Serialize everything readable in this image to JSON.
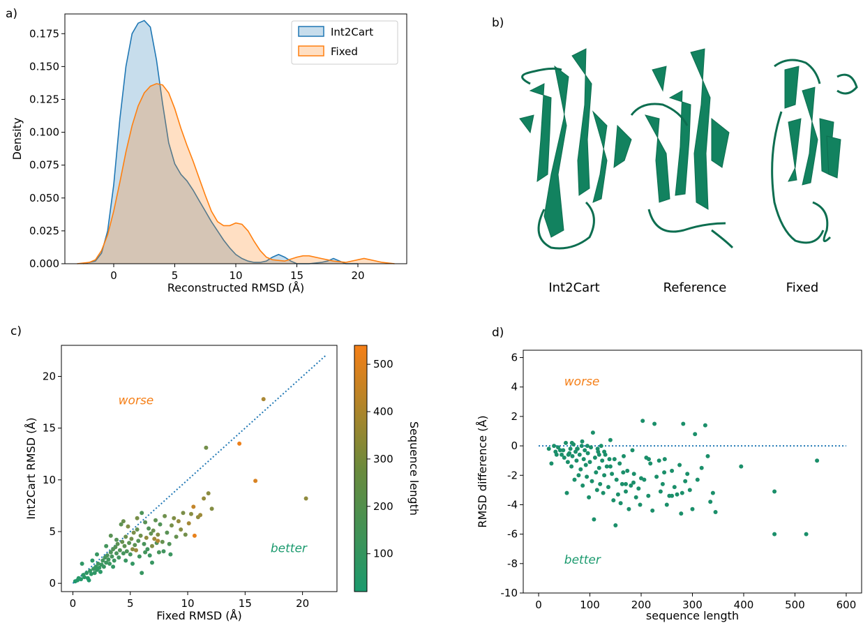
{
  "panels": {
    "a": "a)",
    "b": "b)",
    "c": "c)",
    "d": "d)"
  },
  "colors": {
    "int2cart": "#1f77b4",
    "fixed": "#ff7f0e",
    "green": "#1b8f6a",
    "cmap_low": "#1b9a6e",
    "cmap_high": "#f57f17"
  },
  "panel_b": {
    "captions": [
      "Int2Cart",
      "Reference",
      "Fixed"
    ]
  },
  "chart_data": [
    {
      "id": "a",
      "type": "area",
      "xlabel": "Reconstructed RMSD (Å)",
      "ylabel": "Density",
      "xlim": [
        -4,
        24
      ],
      "ylim": [
        0,
        0.19
      ],
      "xticks": [
        0,
        5,
        10,
        15,
        20
      ],
      "yticks": [
        0.0,
        0.025,
        0.05,
        0.075,
        0.1,
        0.125,
        0.15,
        0.175
      ],
      "ytick_labels": [
        "0.000",
        "0.025",
        "0.050",
        "0.075",
        "0.100",
        "0.125",
        "0.150",
        "0.175"
      ],
      "legend_position": "top-right",
      "series": [
        {
          "name": "Int2Cart",
          "x": [
            -2.5,
            -1.5,
            -1,
            -0.5,
            0,
            0.5,
            1,
            1.5,
            2,
            2.5,
            3,
            3.5,
            4,
            4.5,
            5,
            5.5,
            6,
            6.5,
            7,
            7.5,
            8,
            8.5,
            9,
            9.5,
            10,
            10.5,
            11,
            11.5,
            12,
            12.5,
            13,
            13.5,
            14,
            14.5,
            15,
            16,
            17,
            17.5,
            18,
            18.5,
            19,
            20
          ],
          "y": [
            0,
            0.002,
            0.008,
            0.025,
            0.06,
            0.11,
            0.15,
            0.175,
            0.183,
            0.185,
            0.18,
            0.155,
            0.122,
            0.092,
            0.076,
            0.068,
            0.063,
            0.056,
            0.048,
            0.04,
            0.032,
            0.025,
            0.018,
            0.012,
            0.007,
            0.004,
            0.002,
            0.001,
            0.001,
            0.002,
            0.005,
            0.007,
            0.005,
            0.002,
            0.0,
            0.0,
            0.001,
            0.002,
            0.004,
            0.002,
            0.0,
            0.0
          ]
        },
        {
          "name": "Fixed",
          "x": [
            -3,
            -2,
            -1.5,
            -1,
            -0.5,
            0,
            0.5,
            1,
            1.5,
            2,
            2.5,
            3,
            3.5,
            4,
            4.5,
            5,
            5.5,
            6,
            6.5,
            7,
            7.5,
            8,
            8.5,
            9,
            9.5,
            10,
            10.5,
            11,
            11.5,
            12,
            12.5,
            13,
            14,
            15,
            15.5,
            16,
            17,
            18,
            19,
            20,
            20.5,
            21,
            22,
            23
          ],
          "y": [
            0,
            0.001,
            0.003,
            0.01,
            0.022,
            0.04,
            0.062,
            0.085,
            0.105,
            0.12,
            0.13,
            0.135,
            0.137,
            0.136,
            0.13,
            0.118,
            0.103,
            0.09,
            0.078,
            0.065,
            0.052,
            0.04,
            0.032,
            0.029,
            0.029,
            0.031,
            0.03,
            0.025,
            0.017,
            0.01,
            0.005,
            0.003,
            0.002,
            0.005,
            0.006,
            0.006,
            0.004,
            0.002,
            0.001,
            0.003,
            0.004,
            0.003,
            0.001,
            0.0
          ]
        }
      ]
    },
    {
      "id": "c",
      "type": "scatter",
      "xlabel": "Fixed RMSD (Å)",
      "ylabel": "Int2Cart RMSD (Å)",
      "xlim": [
        -1,
        23
      ],
      "ylim": [
        -0.8,
        23
      ],
      "xticks": [
        0,
        5,
        10,
        15,
        20
      ],
      "yticks": [
        0,
        5,
        10,
        15,
        20
      ],
      "reference_line": {
        "x": [
          0,
          22
        ],
        "y": [
          0,
          22
        ]
      },
      "annotations": [
        {
          "text": "worse",
          "x": 5.5,
          "y": 17.3,
          "color": "#f57f17"
        },
        {
          "text": "better",
          "x": 18.8,
          "y": 3.0,
          "color": "#1b9a6e"
        }
      ],
      "colorbar": {
        "label": "Sequence length",
        "range": [
          20,
          540
        ],
        "ticks": [
          100,
          200,
          300,
          400,
          500
        ]
      },
      "points": [
        [
          0.2,
          0.2,
          30
        ],
        [
          0.4,
          0.3,
          40
        ],
        [
          0.5,
          0.5,
          50
        ],
        [
          0.7,
          0.4,
          45
        ],
        [
          0.9,
          0.8,
          60
        ],
        [
          1.0,
          0.6,
          55
        ],
        [
          1.2,
          1.0,
          70
        ],
        [
          1.3,
          0.5,
          50
        ],
        [
          1.5,
          1.2,
          80
        ],
        [
          1.6,
          0.9,
          65
        ],
        [
          1.8,
          1.4,
          90
        ],
        [
          1.9,
          1.0,
          70
        ],
        [
          2.0,
          1.6,
          85
        ],
        [
          2.1,
          1.3,
          75
        ],
        [
          2.2,
          1.9,
          100
        ],
        [
          2.3,
          1.5,
          80
        ],
        [
          2.5,
          1.8,
          95
        ],
        [
          2.6,
          2.2,
          110
        ],
        [
          2.7,
          1.6,
          90
        ],
        [
          2.8,
          2.5,
          120
        ],
        [
          2.9,
          2.0,
          100
        ],
        [
          3.0,
          2.7,
          130
        ],
        [
          3.1,
          2.3,
          110
        ],
        [
          3.2,
          1.9,
          95
        ],
        [
          3.3,
          3.0,
          140
        ],
        [
          3.4,
          2.6,
          120
        ],
        [
          3.5,
          3.3,
          150
        ],
        [
          3.6,
          2.2,
          100
        ],
        [
          3.7,
          3.5,
          160
        ],
        [
          3.8,
          2.9,
          130
        ],
        [
          3.9,
          3.8,
          170
        ],
        [
          4.0,
          2.5,
          110
        ],
        [
          4.1,
          3.2,
          150
        ],
        [
          4.2,
          5.7,
          180
        ],
        [
          4.3,
          4.0,
          200
        ],
        [
          4.4,
          2.9,
          120
        ],
        [
          4.5,
          3.6,
          180
        ],
        [
          4.6,
          4.5,
          210
        ],
        [
          4.7,
          3.1,
          140
        ],
        [
          4.8,
          5.5,
          260
        ],
        [
          4.9,
          3.9,
          170
        ],
        [
          5.0,
          2.8,
          120
        ],
        [
          5.1,
          4.3,
          230
        ],
        [
          5.2,
          3.3,
          290
        ],
        [
          5.3,
          4.9,
          250
        ],
        [
          5.4,
          3.7,
          180
        ],
        [
          5.5,
          3.2,
          330
        ],
        [
          5.6,
          5.2,
          200
        ],
        [
          5.7,
          4.1,
          160
        ],
        [
          5.8,
          2.6,
          110
        ],
        [
          5.9,
          4.6,
          220
        ],
        [
          6.0,
          6.8,
          140
        ],
        [
          6.0,
          1.0,
          90
        ],
        [
          6.2,
          3.8,
          130
        ],
        [
          6.3,
          5.9,
          170
        ],
        [
          6.4,
          4.4,
          300
        ],
        [
          6.5,
          3.3,
          110
        ],
        [
          6.6,
          5.3,
          150
        ],
        [
          6.7,
          2.7,
          100
        ],
        [
          6.8,
          4.8,
          190
        ],
        [
          6.9,
          3.6,
          260
        ],
        [
          7.0,
          5.1,
          210
        ],
        [
          7.1,
          4.3,
          340
        ],
        [
          7.2,
          6.1,
          180
        ],
        [
          7.3,
          3.9,
          160
        ],
        [
          7.4,
          4.7,
          270
        ],
        [
          7.5,
          3.0,
          130
        ],
        [
          7.6,
          5.7,
          150
        ],
        [
          7.8,
          4.0,
          200
        ],
        [
          8.0,
          6.5,
          220
        ],
        [
          8.2,
          4.9,
          170
        ],
        [
          8.4,
          3.8,
          150
        ],
        [
          8.6,
          5.6,
          240
        ],
        [
          8.8,
          6.3,
          260
        ],
        [
          9.0,
          4.5,
          200
        ],
        [
          9.2,
          6.0,
          310
        ],
        [
          9.4,
          5.2,
          280
        ],
        [
          9.6,
          6.8,
          250
        ],
        [
          9.8,
          4.7,
          230
        ],
        [
          10.1,
          5.8,
          350
        ],
        [
          10.3,
          6.7,
          280
        ],
        [
          10.5,
          7.4,
          420
        ],
        [
          10.6,
          4.6,
          510
        ],
        [
          10.9,
          6.4,
          300
        ],
        [
          11.1,
          6.6,
          330
        ],
        [
          11.4,
          8.2,
          310
        ],
        [
          11.6,
          13.1,
          230
        ],
        [
          11.8,
          8.7,
          290
        ],
        [
          12.1,
          7.2,
          270
        ],
        [
          14.5,
          13.5,
          520
        ],
        [
          15.9,
          9.9,
          470
        ],
        [
          16.6,
          17.8,
          360
        ],
        [
          20.3,
          8.2,
          300
        ],
        [
          1.4,
          0.3,
          40
        ],
        [
          2.4,
          1.1,
          60
        ],
        [
          3.5,
          1.6,
          80
        ],
        [
          0.8,
          1.9,
          70
        ],
        [
          1.7,
          2.2,
          60
        ],
        [
          2.9,
          3.6,
          120
        ],
        [
          3.8,
          4.2,
          160
        ],
        [
          4.6,
          2.2,
          90
        ],
        [
          5.2,
          1.9,
          80
        ],
        [
          6.3,
          3.0,
          120
        ],
        [
          6.9,
          2.0,
          90
        ],
        [
          7.9,
          3.1,
          110
        ],
        [
          8.5,
          2.8,
          100
        ],
        [
          2.1,
          2.8,
          90
        ],
        [
          3.3,
          4.6,
          170
        ],
        [
          4.4,
          6.0,
          210
        ],
        [
          5.6,
          6.3,
          240
        ],
        [
          7.4,
          4.1,
          380
        ]
      ]
    },
    {
      "id": "d",
      "type": "scatter",
      "xlabel": "sequence length",
      "ylabel": "RMSD difference (Å)",
      "xlim": [
        -30,
        630
      ],
      "ylim": [
        -10,
        6.5
      ],
      "xticks": [
        0,
        100,
        200,
        300,
        400,
        500,
        600
      ],
      "yticks": [
        -10,
        -8,
        -6,
        -4,
        -2,
        0,
        2,
        4,
        6
      ],
      "reference_line": {
        "x": [
          0,
          600
        ],
        "y": [
          0,
          0
        ]
      },
      "annotations": [
        {
          "text": "worse",
          "x": 50,
          "y": 4.1,
          "color": "#f57f17"
        },
        {
          "text": "better",
          "x": 50,
          "y": -8.0,
          "color": "#1b9a6e"
        }
      ],
      "points": [
        [
          20,
          -0.2
        ],
        [
          25,
          -1.2
        ],
        [
          30,
          0.0
        ],
        [
          33,
          -0.4
        ],
        [
          38,
          -0.1
        ],
        [
          45,
          -0.6
        ],
        [
          48,
          -0.3
        ],
        [
          50,
          -0.8
        ],
        [
          53,
          0.2
        ],
        [
          55,
          -3.2
        ],
        [
          57,
          -1.1
        ],
        [
          60,
          -0.5
        ],
        [
          62,
          -0.2
        ],
        [
          64,
          -1.4
        ],
        [
          66,
          -0.7
        ],
        [
          68,
          0.1
        ],
        [
          70,
          -2.3
        ],
        [
          72,
          -0.4
        ],
        [
          74,
          -1.0
        ],
        [
          76,
          -0.2
        ],
        [
          78,
          -2.0
        ],
        [
          80,
          -0.6
        ],
        [
          82,
          -1.6
        ],
        [
          84,
          0.0
        ],
        [
          86,
          -2.7
        ],
        [
          88,
          -0.9
        ],
        [
          90,
          -0.3
        ],
        [
          92,
          -1.3
        ],
        [
          94,
          -2.1
        ],
        [
          96,
          -0.5
        ],
        [
          98,
          -3.5
        ],
        [
          100,
          -1.1
        ],
        [
          102,
          -0.1
        ],
        [
          104,
          -2.4
        ],
        [
          106,
          0.9
        ],
        [
          108,
          -5.0
        ],
        [
          110,
          -0.8
        ],
        [
          112,
          -1.8
        ],
        [
          114,
          -3.0
        ],
        [
          116,
          -0.4
        ],
        [
          118,
          -1.5
        ],
        [
          120,
          -2.6
        ],
        [
          122,
          0.0
        ],
        [
          124,
          -1.0
        ],
        [
          126,
          -3.2
        ],
        [
          128,
          -2.0
        ],
        [
          130,
          -0.6
        ],
        [
          133,
          -1.4
        ],
        [
          136,
          -2.8
        ],
        [
          140,
          0.4
        ],
        [
          143,
          -1.9
        ],
        [
          146,
          -3.7
        ],
        [
          148,
          -0.9
        ],
        [
          150,
          -5.4
        ],
        [
          152,
          -2.3
        ],
        [
          155,
          -3.3
        ],
        [
          158,
          -1.2
        ],
        [
          160,
          -3.9
        ],
        [
          163,
          -2.6
        ],
        [
          166,
          -0.7
        ],
        [
          170,
          -3.1
        ],
        [
          173,
          -1.7
        ],
        [
          176,
          -4.3
        ],
        [
          180,
          -2.7
        ],
        [
          183,
          -0.3
        ],
        [
          186,
          -1.9
        ],
        [
          190,
          -3.5
        ],
        [
          195,
          -2.9
        ],
        [
          198,
          -4.0
        ],
        [
          203,
          1.7
        ],
        [
          206,
          -2.3
        ],
        [
          210,
          -0.8
        ],
        [
          214,
          -3.4
        ],
        [
          218,
          -1.2
        ],
        [
          222,
          -4.4
        ],
        [
          226,
          1.5
        ],
        [
          230,
          -2.1
        ],
        [
          235,
          -1.0
        ],
        [
          238,
          -3.1
        ],
        [
          242,
          -2.6
        ],
        [
          246,
          -0.9
        ],
        [
          250,
          -4.0
        ],
        [
          255,
          -3.4
        ],
        [
          260,
          -1.7
        ],
        [
          265,
          -2.8
        ],
        [
          270,
          -3.3
        ],
        [
          275,
          -1.3
        ],
        [
          278,
          -4.6
        ],
        [
          282,
          1.5
        ],
        [
          286,
          -2.4
        ],
        [
          290,
          -1.9
        ],
        [
          295,
          -3.0
        ],
        [
          300,
          -4.3
        ],
        [
          305,
          0.8
        ],
        [
          310,
          -2.3
        ],
        [
          318,
          -1.5
        ],
        [
          325,
          1.4
        ],
        [
          330,
          -0.7
        ],
        [
          335,
          -3.8
        ],
        [
          340,
          -3.2
        ],
        [
          345,
          -4.5
        ],
        [
          395,
          -1.4
        ],
        [
          460,
          -3.1
        ],
        [
          460,
          -6.0
        ],
        [
          522,
          -6.0
        ],
        [
          543,
          -1.0
        ],
        [
          140,
          -1.4
        ],
        [
          115,
          -0.2
        ],
        [
          95,
          0.0
        ],
        [
          85,
          0.3
        ],
        [
          75,
          -0.2
        ],
        [
          65,
          0.2
        ],
        [
          58,
          -0.6
        ],
        [
          42,
          -0.3
        ],
        [
          35,
          -0.6
        ],
        [
          128,
          -0.4
        ],
        [
          118,
          -0.6
        ],
        [
          138,
          -0.9
        ],
        [
          165,
          -1.8
        ],
        [
          185,
          -2.5
        ],
        [
          200,
          -2.2
        ],
        [
          215,
          -0.9
        ],
        [
          245,
          -1.8
        ],
        [
          260,
          -3.4
        ],
        [
          280,
          -3.2
        ],
        [
          170,
          -2.6
        ]
      ]
    }
  ]
}
